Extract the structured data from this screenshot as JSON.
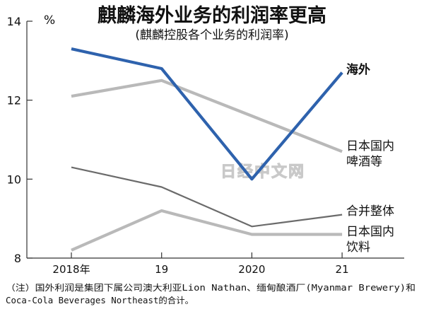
{
  "chart_data": {
    "type": "line",
    "title": "麒麟海外业务的利润率更高",
    "subtitle": "(麒麟控股各个业务的利润率)",
    "unit": "%",
    "xlabel": "",
    "ylabel": "",
    "categories": [
      "2018年",
      "19",
      "2020",
      "21"
    ],
    "ylim": [
      8,
      14
    ],
    "yticks": [
      8,
      10,
      12,
      14
    ],
    "grid": false,
    "legend": "inline labels at right end of lines",
    "series": [
      {
        "name_lines": [
          "海外"
        ],
        "values": [
          13.3,
          12.8,
          10.0,
          12.7
        ],
        "color": "#2e62ad"
      },
      {
        "name_lines": [
          "日本国内",
          "啤酒等"
        ],
        "values": [
          12.1,
          12.5,
          11.6,
          10.7
        ],
        "color": "#b9b9b9"
      },
      {
        "name_lines": [
          "合并整体"
        ],
        "values": [
          10.3,
          9.8,
          8.8,
          9.1
        ],
        "color": "#6b6b6b"
      },
      {
        "name_lines": [
          "日本国内",
          "饮料"
        ],
        "values": [
          8.2,
          9.2,
          8.6,
          8.6
        ],
        "color": "#b9b9b9"
      }
    ]
  },
  "watermark": "日经中文网",
  "note": {
    "line1": "（注）国外利润是集团下属公司澳大利亚Lion Nathan、缅甸酿酒厂(Myanmar Brewery)和",
    "line2": "Coca-Cola Beverages Northeast的合计。"
  }
}
